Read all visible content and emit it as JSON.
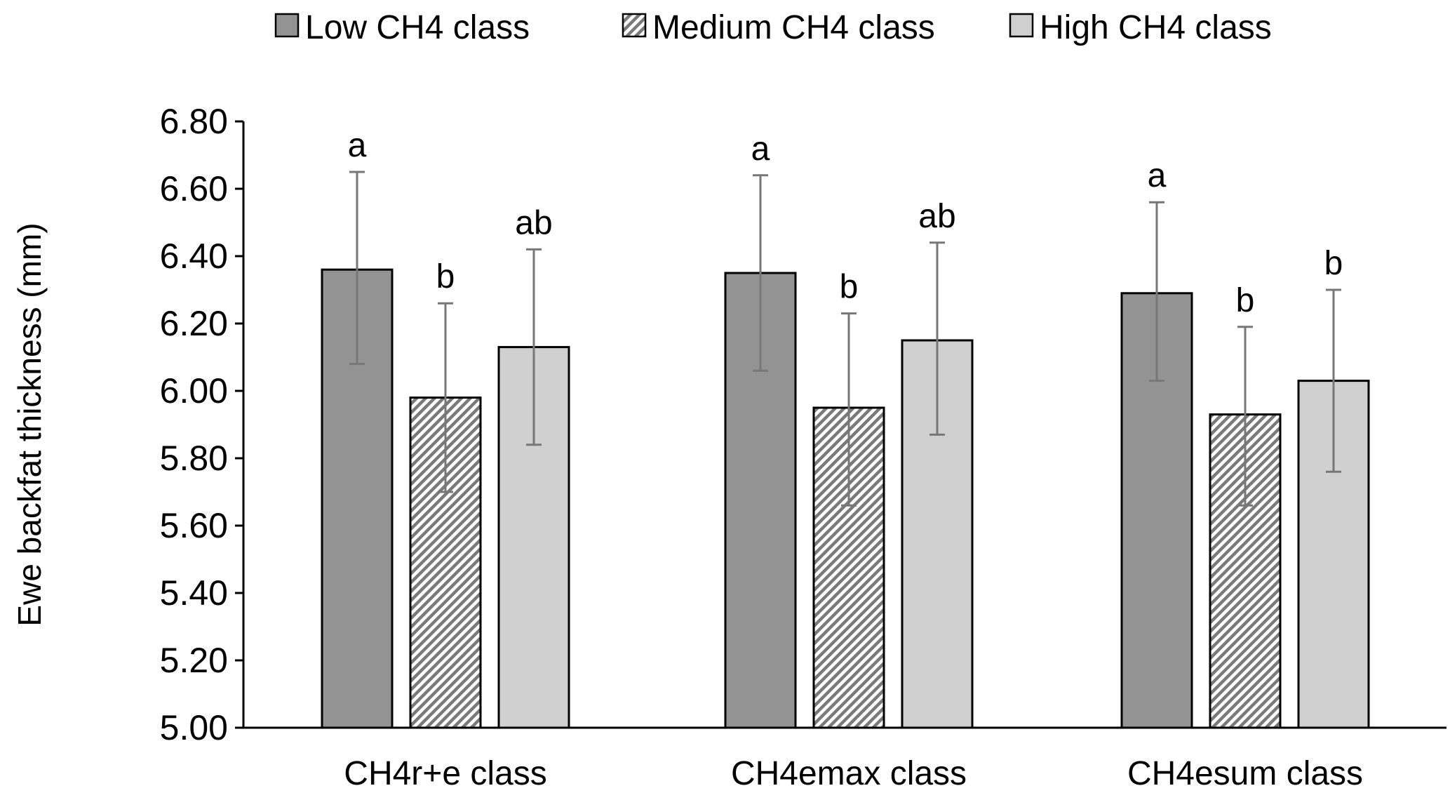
{
  "chart_data": {
    "type": "bar",
    "title": "",
    "xlabel": "",
    "ylabel": "Ewe backfat thickness (mm)",
    "ylim": [
      5.0,
      6.8
    ],
    "yticks": [
      "5.00",
      "5.20",
      "5.40",
      "5.60",
      "5.80",
      "6.00",
      "6.20",
      "6.40",
      "6.60",
      "6.80"
    ],
    "grid": false,
    "legend_position": "top",
    "categories": [
      "CH4r+e class",
      "CH4emax class",
      "CH4esum class"
    ],
    "series": [
      {
        "name": "Low CH4 class",
        "color": "#939393",
        "pattern": "solid",
        "values": [
          6.36,
          6.35,
          6.29
        ],
        "err_low": [
          6.08,
          6.06,
          6.03
        ],
        "err_high": [
          6.65,
          6.64,
          6.56
        ],
        "letters": [
          "a",
          "a",
          "a"
        ]
      },
      {
        "name": "Medium CH4 class",
        "color": "#7a7a7a",
        "pattern": "hatch",
        "values": [
          5.98,
          5.95,
          5.93
        ],
        "err_low": [
          5.7,
          5.66,
          5.66
        ],
        "err_high": [
          6.26,
          6.23,
          6.19
        ],
        "letters": [
          "b",
          "b",
          "b"
        ]
      },
      {
        "name": "High CH4 class",
        "color": "#d0d0d0",
        "pattern": "solid",
        "values": [
          6.13,
          6.15,
          6.03
        ],
        "err_low": [
          5.84,
          5.87,
          5.76
        ],
        "err_high": [
          6.42,
          6.44,
          6.3
        ],
        "letters": [
          "ab",
          "ab",
          "b"
        ]
      }
    ]
  }
}
